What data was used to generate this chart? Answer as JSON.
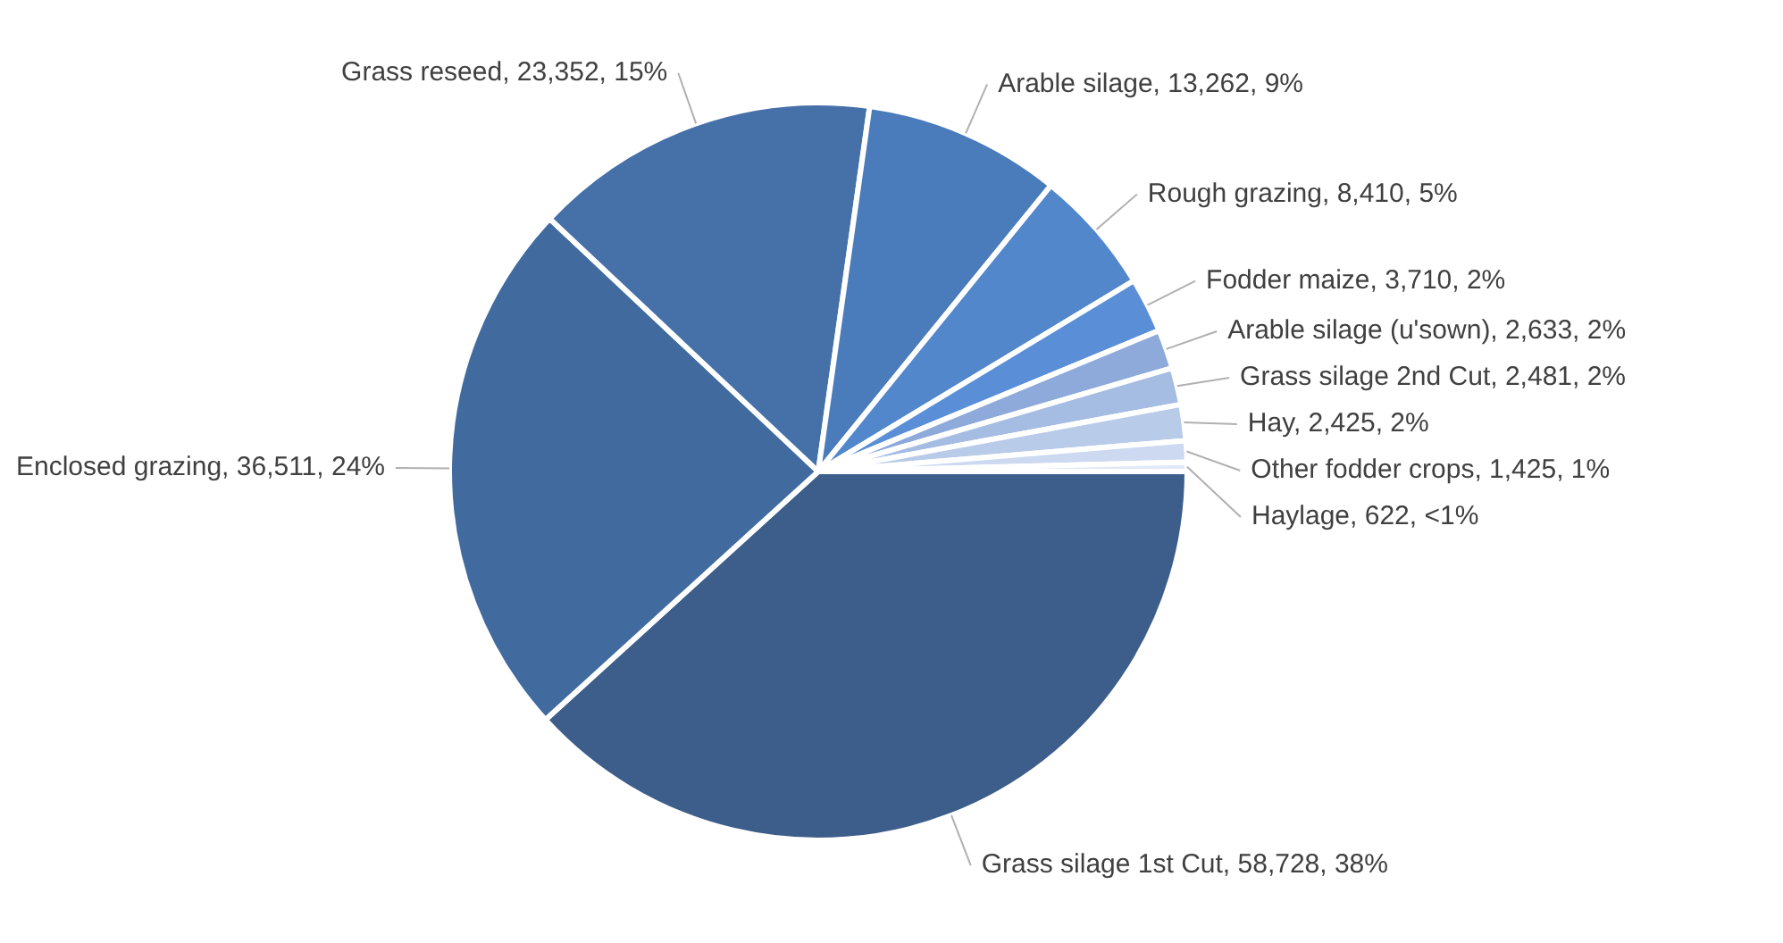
{
  "chart_data": {
    "type": "pie",
    "categories": [
      "Grass silage 1st Cut",
      "Enclosed grazing",
      "Grass reseed",
      "Arable silage",
      "Rough grazing",
      "Fodder maize",
      "Arable silage (u'sown)",
      "Grass silage 2nd Cut",
      "Hay",
      "Other fodder crops",
      "Haylage"
    ],
    "values": [
      58728,
      36511,
      23352,
      13262,
      8410,
      3710,
      2633,
      2481,
      2425,
      1425,
      622
    ],
    "value_labels": [
      "58,728, 38%",
      "36,511, 24%",
      "23,352, 15%",
      "13,262, 9%",
      "8,410, 5%",
      "3,710, 2%",
      "2,633, 2%",
      "2,481, 2%",
      "2,425, 2%",
      "1,425, 1%",
      "622, <1%"
    ],
    "colors": [
      "#3d5e8a",
      "#416b9f",
      "#4570a8",
      "#4a7bba",
      "#5287cb",
      "#5a8fd8",
      "#8eaadb",
      "#a5bce3",
      "#b8cbe9",
      "#cdd9f0",
      "#e1e8f6"
    ],
    "legend": false
  }
}
